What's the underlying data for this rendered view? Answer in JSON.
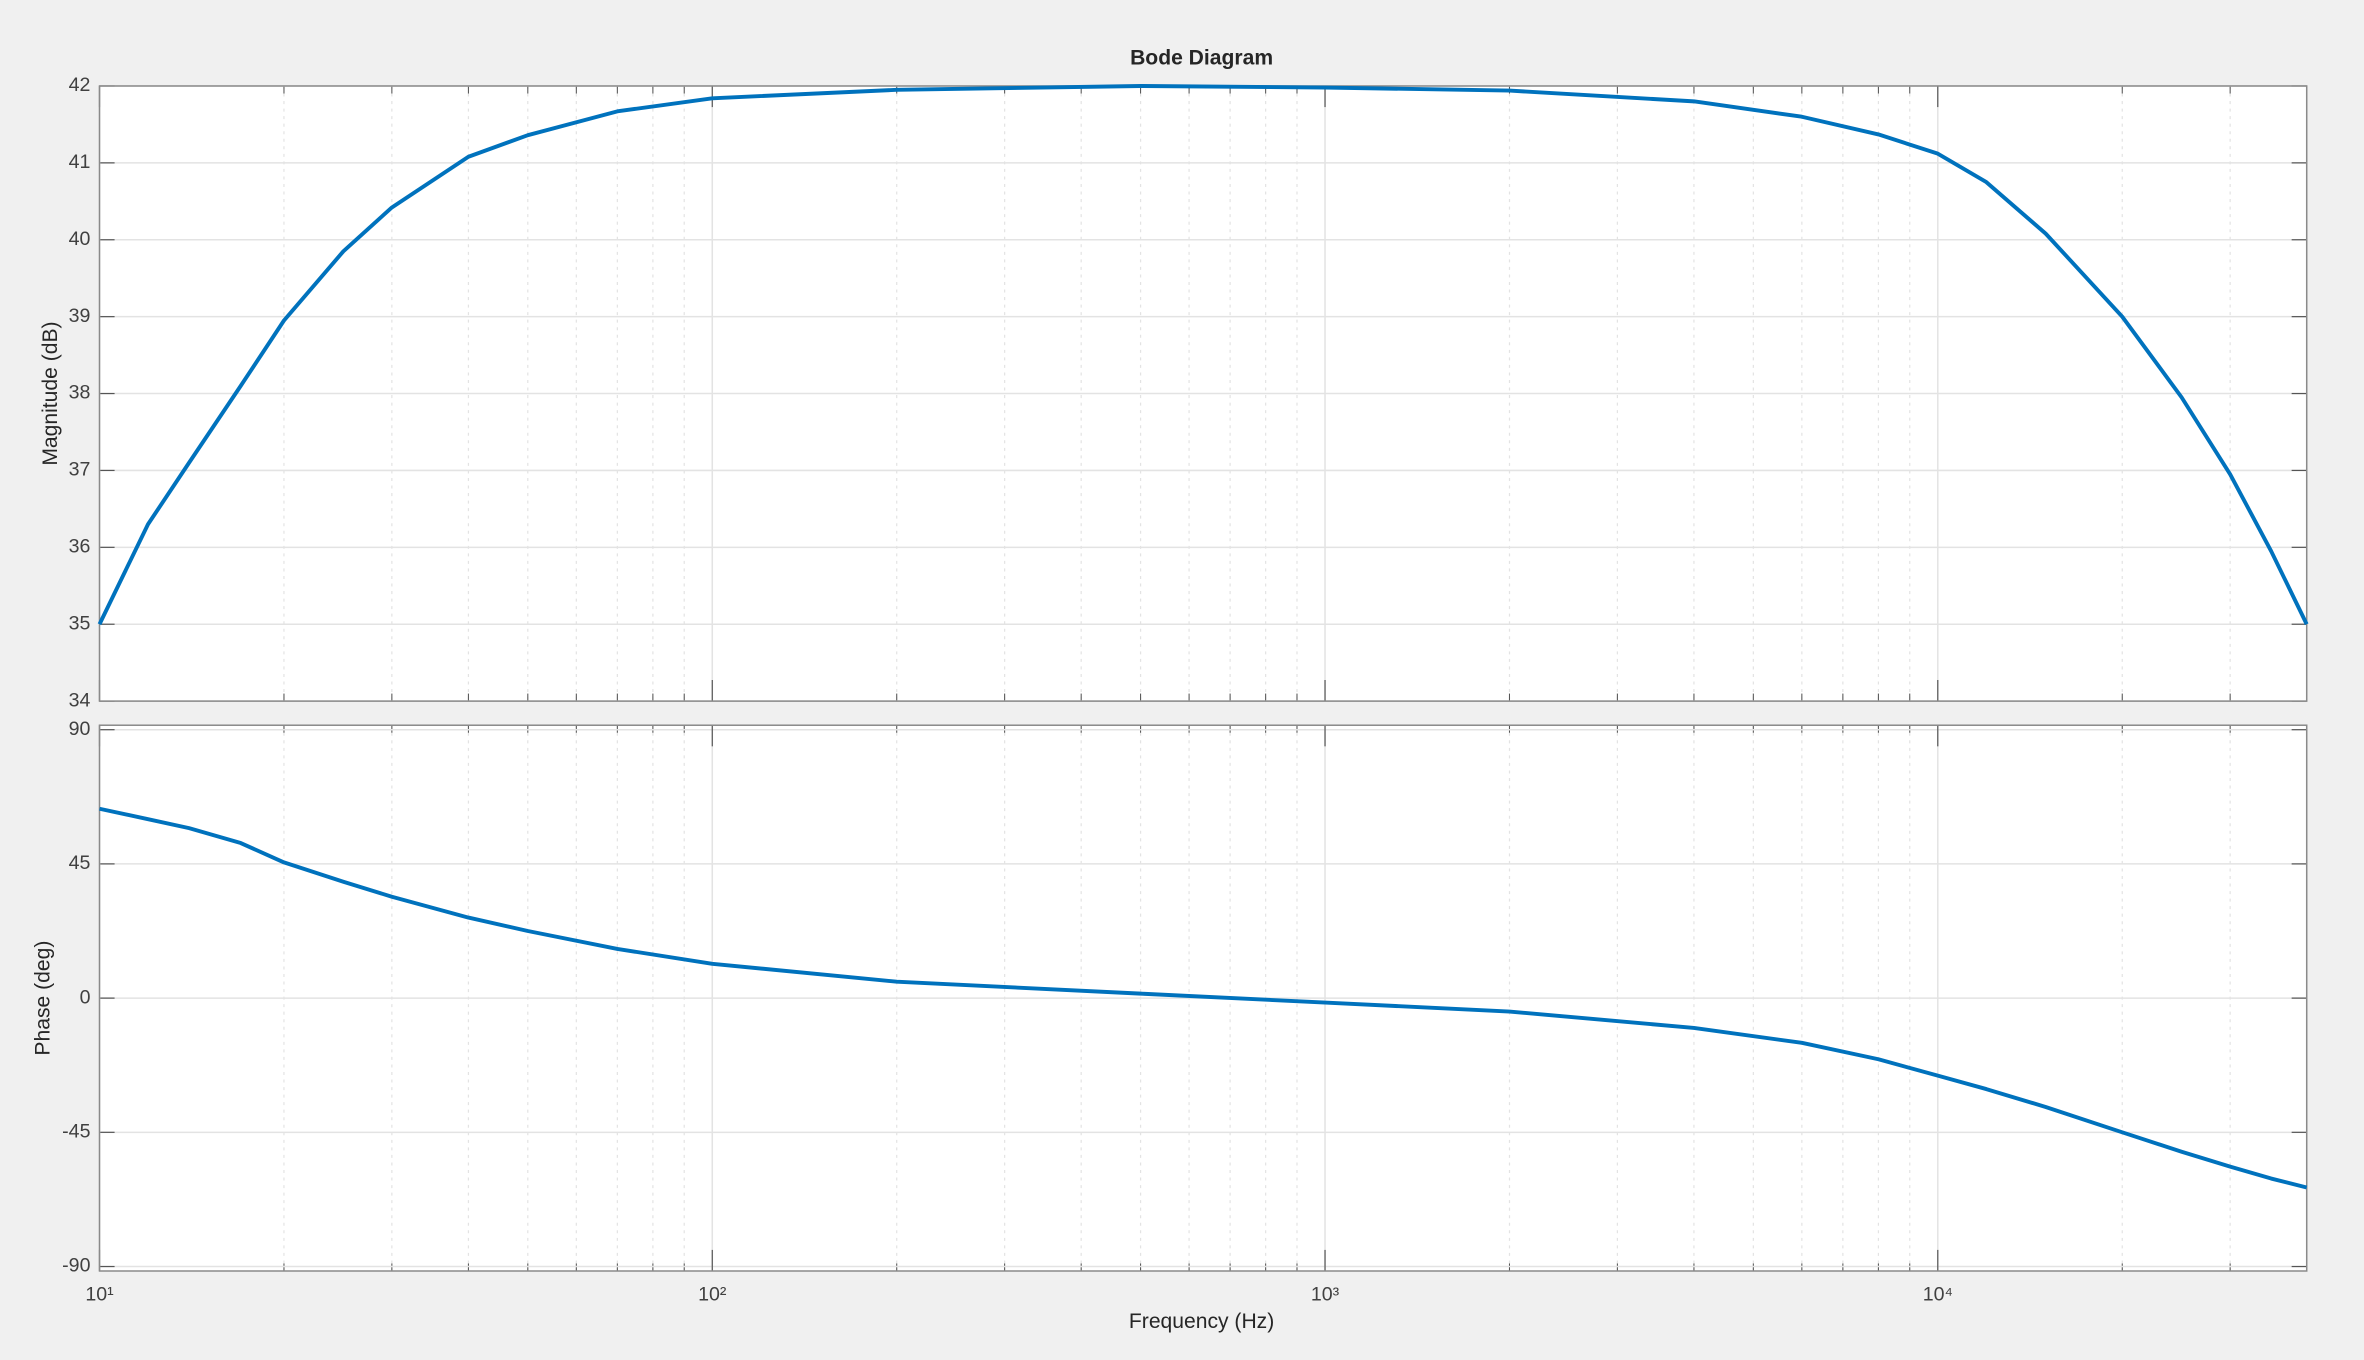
{
  "chart_data": [
    {
      "type": "line",
      "title": "Bode Diagram",
      "ylabel": "Magnitude (dB)",
      "xscale": "log",
      "grid": true,
      "xlim": [
        10,
        40000
      ],
      "xticks": [
        10,
        100,
        1000,
        10000
      ],
      "ylim": [
        34,
        42
      ],
      "yticks": [
        34,
        35,
        36,
        37,
        38,
        39,
        40,
        41,
        42
      ],
      "x": [
        10,
        12,
        14,
        17,
        20,
        25,
        30,
        40,
        50,
        70,
        100,
        200,
        500,
        1000,
        2000,
        4000,
        6000,
        8000,
        10000,
        12000,
        15000,
        20000,
        25000,
        30000,
        35000,
        40000
      ],
      "series": [
        {
          "color": "#0072bd",
          "values": [
            35,
            36.3,
            37.1,
            38.1,
            38.95,
            39.85,
            40.42,
            41.08,
            41.36,
            41.67,
            41.84,
            41.95,
            42,
            41.98,
            41.94,
            41.8,
            41.6,
            41.37,
            41.12,
            40.75,
            40.08,
            39.0,
            37.95,
            36.95,
            35.95,
            35
          ]
        }
      ]
    },
    {
      "type": "line",
      "xlabel": "Frequency  (Hz)",
      "ylabel": "Phase (deg)",
      "xscale": "log",
      "grid": true,
      "xlim": [
        10,
        40000
      ],
      "xticks": [
        {
          "value": 10,
          "label": "10¹"
        },
        {
          "value": 100,
          "label": "10²"
        },
        {
          "value": 1000,
          "label": "10³"
        },
        {
          "value": 10000,
          "label": "10⁴"
        }
      ],
      "ylim": [
        -91.5,
        91.5
      ],
      "yticks": [
        -90,
        -45,
        0,
        45,
        90
      ],
      "x": [
        10,
        12,
        14,
        17,
        20,
        25,
        30,
        40,
        50,
        70,
        100,
        200,
        500,
        1000,
        2000,
        4000,
        6000,
        8000,
        10000,
        12000,
        15000,
        20000,
        25000,
        30000,
        35000,
        40000
      ],
      "series": [
        {
          "color": "#0072bd",
          "values": [
            63.5,
            60,
            57,
            52,
            45.5,
            39,
            34,
            27,
            22.5,
            16.5,
            11.5,
            5.5,
            1.5,
            -1.5,
            -4.5,
            -10,
            -15,
            -20.5,
            -26,
            -30.5,
            -36.5,
            -45,
            -51.5,
            -56.5,
            -60.5,
            -63.5
          ]
        }
      ]
    }
  ]
}
